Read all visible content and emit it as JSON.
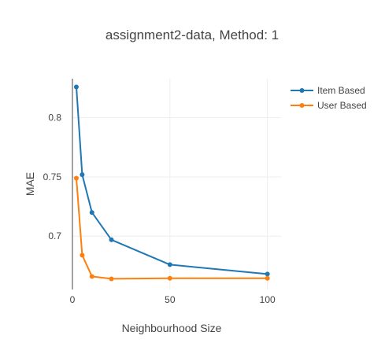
{
  "chart_data": {
    "type": "line",
    "title": "assignment2-data, Method: 1",
    "xlabel": "Neighbourhood Size",
    "ylabel": "MAE",
    "x": [
      2,
      5,
      10,
      20,
      50,
      100
    ],
    "xlim": [
      0,
      107
    ],
    "ylim": [
      0.655,
      0.833
    ],
    "xticks": [
      0,
      50,
      100
    ],
    "yticks": [
      0.7,
      0.75,
      0.8
    ],
    "ytick_labels": [
      "0.7",
      "0.75",
      "0.8"
    ],
    "xtick_labels": [
      "0",
      "50",
      "100"
    ],
    "grid": true,
    "legend_position": "top-right",
    "series": [
      {
        "name": "Item Based",
        "color": "#1f77b4",
        "values": [
          0.826,
          0.752,
          0.72,
          0.697,
          0.676,
          0.668
        ]
      },
      {
        "name": "User Based",
        "color": "#ff7f0e",
        "values": [
          0.749,
          0.684,
          0.666,
          0.664,
          0.6645,
          0.6645
        ]
      }
    ]
  }
}
